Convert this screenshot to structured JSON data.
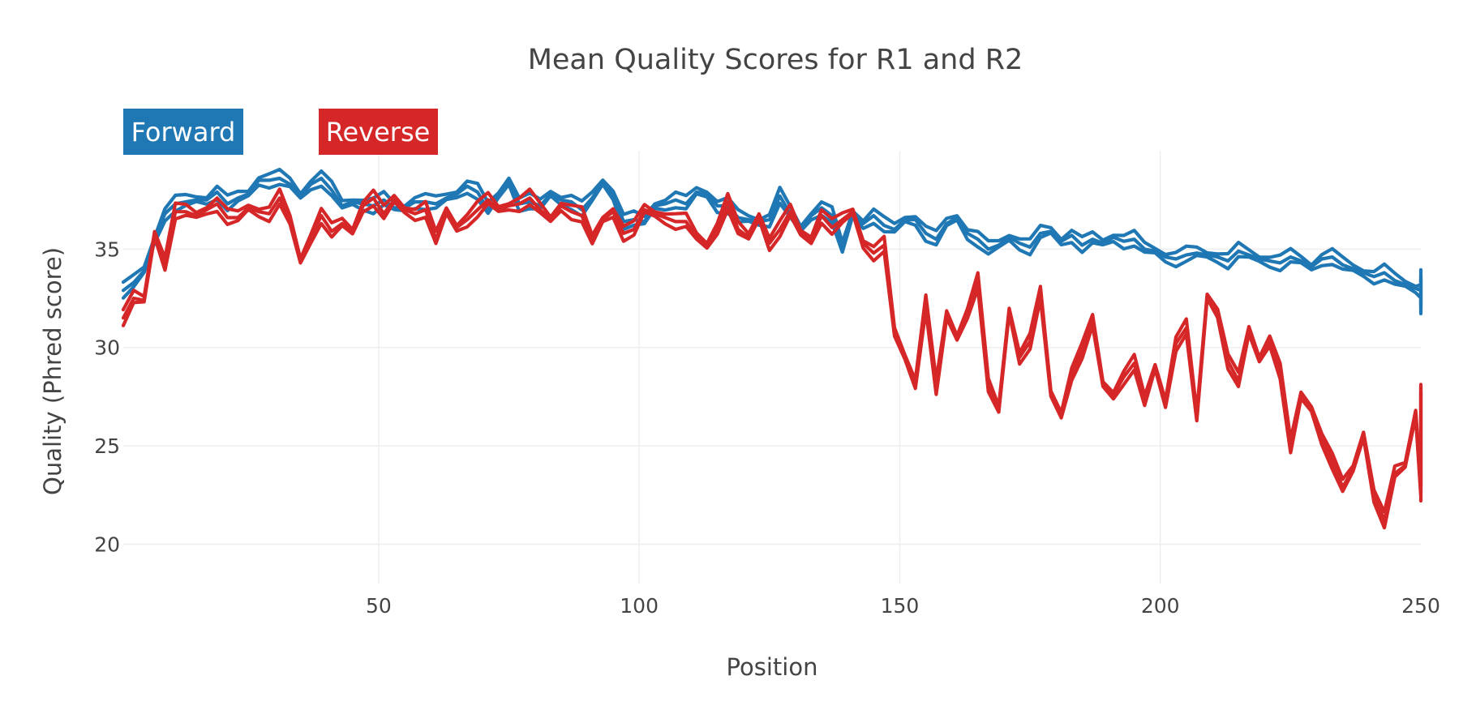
{
  "chart_data": {
    "type": "line",
    "title": "Mean Quality Scores for R1 and R2",
    "xlabel": "Position",
    "ylabel": "Quality (Phred score)",
    "xlim": [
      1,
      250
    ],
    "ylim": [
      18,
      40
    ],
    "x_ticks": [
      50,
      100,
      150,
      200,
      250
    ],
    "y_ticks": [
      20,
      25,
      30,
      35
    ],
    "grid": true,
    "legend_placement": "top-left",
    "legend": [
      {
        "label": "Forward",
        "color": "#1f77b4"
      },
      {
        "label": "Reverse",
        "color": "#d62728"
      }
    ],
    "x_step": 2,
    "series": [
      {
        "name": "Forward",
        "color": "#1f77b4",
        "values": [
          32.9,
          33.3,
          33.9,
          35.5,
          36.8,
          37.3,
          37.4,
          37.5,
          37.5,
          37.9,
          37.3,
          37.6,
          37.8,
          38.5,
          38.5,
          38.6,
          38.3,
          37.7,
          38.3,
          38.6,
          38.0,
          37.2,
          37.4,
          37.3,
          37.2,
          37.5,
          37.1,
          37.1,
          37.4,
          37.4,
          37.3,
          37.6,
          37.8,
          38.2,
          37.9,
          37.0,
          37.7,
          38.5,
          37.3,
          37.4,
          37.2,
          37.8,
          37.5,
          37.4,
          37.0,
          37.6,
          38.4,
          37.8,
          36.4,
          36.5,
          36.4,
          37.2,
          37.3,
          37.5,
          37.3,
          37.9,
          37.8,
          37.2,
          37.2,
          36.6,
          36.5,
          36.4,
          36.5,
          37.7,
          36.8,
          36.0,
          36.7,
          37.1,
          36.7,
          35.0,
          36.8,
          36.3,
          36.7,
          36.2,
          36.0,
          36.5,
          36.5,
          35.8,
          35.5,
          36.3,
          36.6,
          35.8,
          35.5,
          35.0,
          35.2,
          35.6,
          35.3,
          35.1,
          35.8,
          35.9,
          35.4,
          35.7,
          35.2,
          35.5,
          35.3,
          35.6,
          35.4,
          35.5,
          35.0,
          34.9,
          34.6,
          34.5,
          34.7,
          34.8,
          34.7,
          34.6,
          34.4,
          34.9,
          34.7,
          34.5,
          34.4,
          34.3,
          34.6,
          34.4,
          34.1,
          34.5,
          34.6,
          34.2,
          34.0,
          33.8,
          33.6,
          33.8,
          33.4,
          33.2,
          33.0,
          32.9,
          33.5,
          33.1,
          32.8,
          32.3,
          33.3,
          33.0,
          32.7,
          33.6,
          32.0
        ]
      },
      {
        "name": "Reverse",
        "color": "#d62728",
        "values": [
          31.5,
          32.5,
          32.4,
          35.8,
          34.3,
          36.9,
          36.9,
          36.7,
          37.0,
          37.3,
          36.6,
          36.6,
          37.1,
          36.9,
          36.8,
          37.6,
          36.4,
          34.4,
          35.6,
          36.7,
          35.9,
          36.3,
          35.9,
          37.2,
          37.6,
          36.8,
          37.5,
          37.0,
          36.8,
          37.0,
          35.5,
          36.9,
          36.1,
          36.5,
          37.0,
          37.5,
          37.0,
          37.2,
          37.3,
          37.6,
          37.0,
          36.5,
          37.2,
          36.9,
          36.7,
          35.4,
          36.5,
          36.9,
          35.8,
          36.0,
          37.0,
          36.8,
          36.6,
          36.4,
          36.4,
          35.6,
          35.2,
          36.1,
          37.4,
          36.0,
          35.6,
          36.7,
          35.3,
          36.0,
          36.9,
          35.8,
          35.5,
          36.7,
          36.1,
          36.5,
          36.9,
          35.3,
          34.8,
          35.2,
          30.7,
          29.5,
          28.2,
          32.3,
          27.9,
          31.6,
          30.5,
          31.8,
          33.4,
          28.0,
          26.8,
          31.9,
          29.5,
          30.3,
          32.7,
          27.6,
          26.6,
          28.7,
          29.8,
          31.3,
          28.1,
          27.6,
          28.5,
          29.2,
          27.2,
          29.0,
          27.2,
          30.2,
          31.0,
          26.4,
          32.6,
          31.8,
          29.3,
          28.3,
          30.8,
          29.4,
          30.4,
          28.8,
          24.9,
          27.5,
          26.9,
          25.4,
          24.2,
          22.9,
          23.8,
          25.6,
          22.5,
          21.2,
          23.6,
          24.0,
          26.7,
          22.8,
          27.1,
          23.5,
          25.5,
          28.0,
          22.6
        ]
      }
    ]
  }
}
